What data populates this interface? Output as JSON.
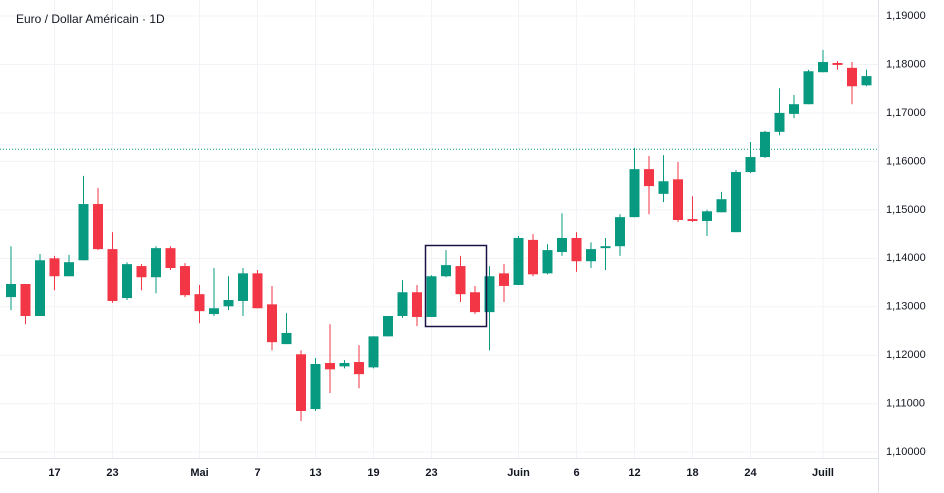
{
  "chart_data": {
    "type": "candlestick",
    "title": "Euro / Dollar Américain · 1D",
    "categories": [
      null,
      null,
      null,
      "17",
      null,
      null,
      null,
      "23",
      null,
      null,
      null,
      null,
      null,
      "Mai",
      null,
      null,
      null,
      "7",
      null,
      null,
      null,
      "13",
      null,
      null,
      null,
      "19",
      null,
      null,
      null,
      "23",
      null,
      null,
      null,
      null,
      null,
      "Juin",
      null,
      null,
      null,
      "6",
      null,
      null,
      null,
      "12",
      null,
      null,
      null,
      "18",
      null,
      null,
      null,
      "24",
      null,
      null,
      null,
      null,
      "Juill",
      null,
      null,
      null
    ],
    "open": [
      1.132,
      1.1347,
      1.1281,
      1.14,
      1.1363,
      1.1396,
      1.1512,
      1.1419,
      1.1318,
      1.1384,
      1.1361,
      1.1421,
      1.1384,
      1.1326,
      1.1285,
      1.1301,
      1.1312,
      1.1369,
      1.1305,
      1.1223,
      1.1202,
      1.1089,
      1.1184,
      1.1177,
      1.1186,
      1.1175,
      1.1239,
      1.1281,
      1.133,
      1.1279,
      1.1363,
      1.1384,
      1.133,
      1.1289,
      1.1369,
      1.1345,
      1.1438,
      1.1369,
      1.1413,
      1.1442,
      1.1394,
      1.1421,
      1.1425,
      1.1485,
      1.1584,
      1.1533,
      1.1563,
      1.1481,
      1.1477,
      1.1495,
      1.1454,
      1.1578,
      1.1609,
      1.1661,
      1.1698,
      1.1718,
      1.1784,
      1.1803,
      1.1793,
      1.1757
    ],
    "high": [
      1.1425,
      1.1347,
      1.1409,
      1.1405,
      1.1407,
      1.157,
      1.1545,
      1.1454,
      1.1392,
      1.1388,
      1.1425,
      1.1425,
      1.139,
      1.1345,
      1.138,
      1.1363,
      1.138,
      1.1376,
      1.1343,
      1.1287,
      1.121,
      1.1194,
      1.1264,
      1.119,
      1.1221,
      1.1239,
      1.1281,
      1.1355,
      1.1345,
      1.1365,
      1.1417,
      1.1405,
      1.1343,
      1.1384,
      1.1388,
      1.1446,
      1.145,
      1.1429,
      1.1493,
      1.1454,
      1.1433,
      1.1442,
      1.1491,
      1.1628,
      1.1611,
      1.1613,
      1.1599,
      1.1528,
      1.15,
      1.1537,
      1.1582,
      1.164,
      1.1663,
      1.1751,
      1.1737,
      1.1789,
      1.183,
      1.1807,
      1.1805,
      1.1789
    ],
    "low": [
      1.1293,
      1.1264,
      1.1281,
      1.1334,
      1.1363,
      1.1396,
      1.1417,
      1.1308,
      1.1314,
      1.1334,
      1.1328,
      1.1376,
      1.132,
      1.1266,
      1.1281,
      1.1293,
      1.1281,
      1.1297,
      1.121,
      1.1223,
      1.1064,
      1.1085,
      1.1122,
      1.1173,
      1.1132,
      1.1173,
      1.1239,
      1.1277,
      1.126,
      1.1279,
      1.1361,
      1.131,
      1.1285,
      1.121,
      1.131,
      1.1345,
      1.1363,
      1.1367,
      1.1405,
      1.1372,
      1.138,
      1.1376,
      1.1405,
      1.1485,
      1.1491,
      1.1516,
      1.1475,
      1.1475,
      1.1446,
      1.1495,
      1.1454,
      1.1576,
      1.1607,
      1.1654,
      1.1689,
      1.1718,
      1.1784,
      1.1789,
      1.1718,
      1.1755
    ],
    "close": [
      1.1347,
      1.1281,
      1.1396,
      1.1363,
      1.1392,
      1.1512,
      1.1419,
      1.1312,
      1.1388,
      1.1361,
      1.1421,
      1.138,
      1.1324,
      1.1291,
      1.1297,
      1.1314,
      1.1369,
      1.1297,
      1.1227,
      1.1246,
      1.1085,
      1.1182,
      1.1171,
      1.1184,
      1.1161,
      1.1239,
      1.1281,
      1.133,
      1.1279,
      1.1363,
      1.1386,
      1.1326,
      1.1289,
      1.1363,
      1.1343,
      1.1442,
      1.1367,
      1.1417,
      1.1442,
      1.1394,
      1.1419,
      1.1425,
      1.1485,
      1.1584,
      1.1549,
      1.1559,
      1.1479,
      1.1477,
      1.1497,
      1.1522,
      1.1578,
      1.1609,
      1.1661,
      1.17,
      1.1718,
      1.1786,
      1.1805,
      1.1799,
      1.1755,
      1.1776
    ],
    "up_color": "#089981",
    "down_color": "#f23645",
    "price_line": 1.1625,
    "ylim": [
      1.0988,
      1.1933
    ],
    "yticks": [
      {
        "value": 1.1,
        "label": "1,10000"
      },
      {
        "value": 1.11,
        "label": "1,11000"
      },
      {
        "value": 1.12,
        "label": "1,12000"
      },
      {
        "value": 1.13,
        "label": "1,13000"
      },
      {
        "value": 1.14,
        "label": "1,14000"
      },
      {
        "value": 1.15,
        "label": "1,15000"
      },
      {
        "value": 1.16,
        "label": "1,16000"
      },
      {
        "value": 1.17,
        "label": "1,17000"
      },
      {
        "value": 1.18,
        "label": "1,18000"
      },
      {
        "value": 1.19,
        "label": "1,19000"
      }
    ],
    "grid": true
  }
}
